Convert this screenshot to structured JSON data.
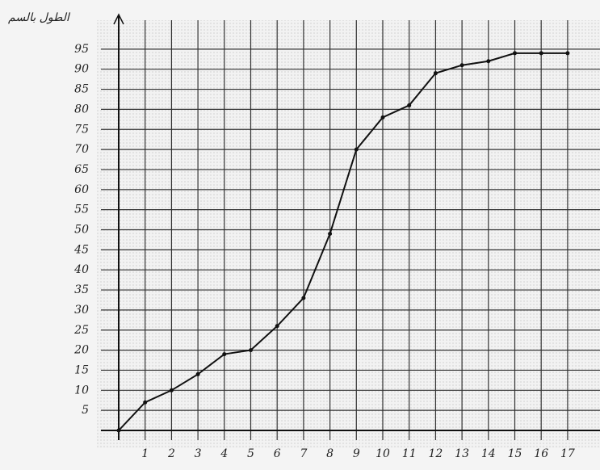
{
  "chart_data": {
    "type": "line",
    "y_label": "الطول بالسم",
    "x": [
      0,
      1,
      2,
      3,
      4,
      5,
      6,
      7,
      8,
      9,
      10,
      11,
      12,
      13,
      14,
      15,
      16,
      17
    ],
    "series": [
      {
        "color": "#111111",
        "values": [
          0,
          7,
          10,
          14,
          19,
          20,
          26,
          33,
          49,
          70,
          78,
          81,
          89,
          91,
          92,
          94,
          94,
          94
        ]
      }
    ],
    "xlim": [
      0,
      18
    ],
    "ylim": [
      0,
      103
    ],
    "xticks": [
      1,
      2,
      3,
      4,
      5,
      6,
      7,
      8,
      9,
      10,
      11,
      12,
      13,
      14,
      15,
      16,
      17
    ],
    "yticks": [
      5,
      10,
      15,
      20,
      25,
      30,
      35,
      40,
      45,
      50,
      55,
      60,
      65,
      70,
      75,
      80,
      85,
      90,
      95
    ],
    "grid": true
  }
}
